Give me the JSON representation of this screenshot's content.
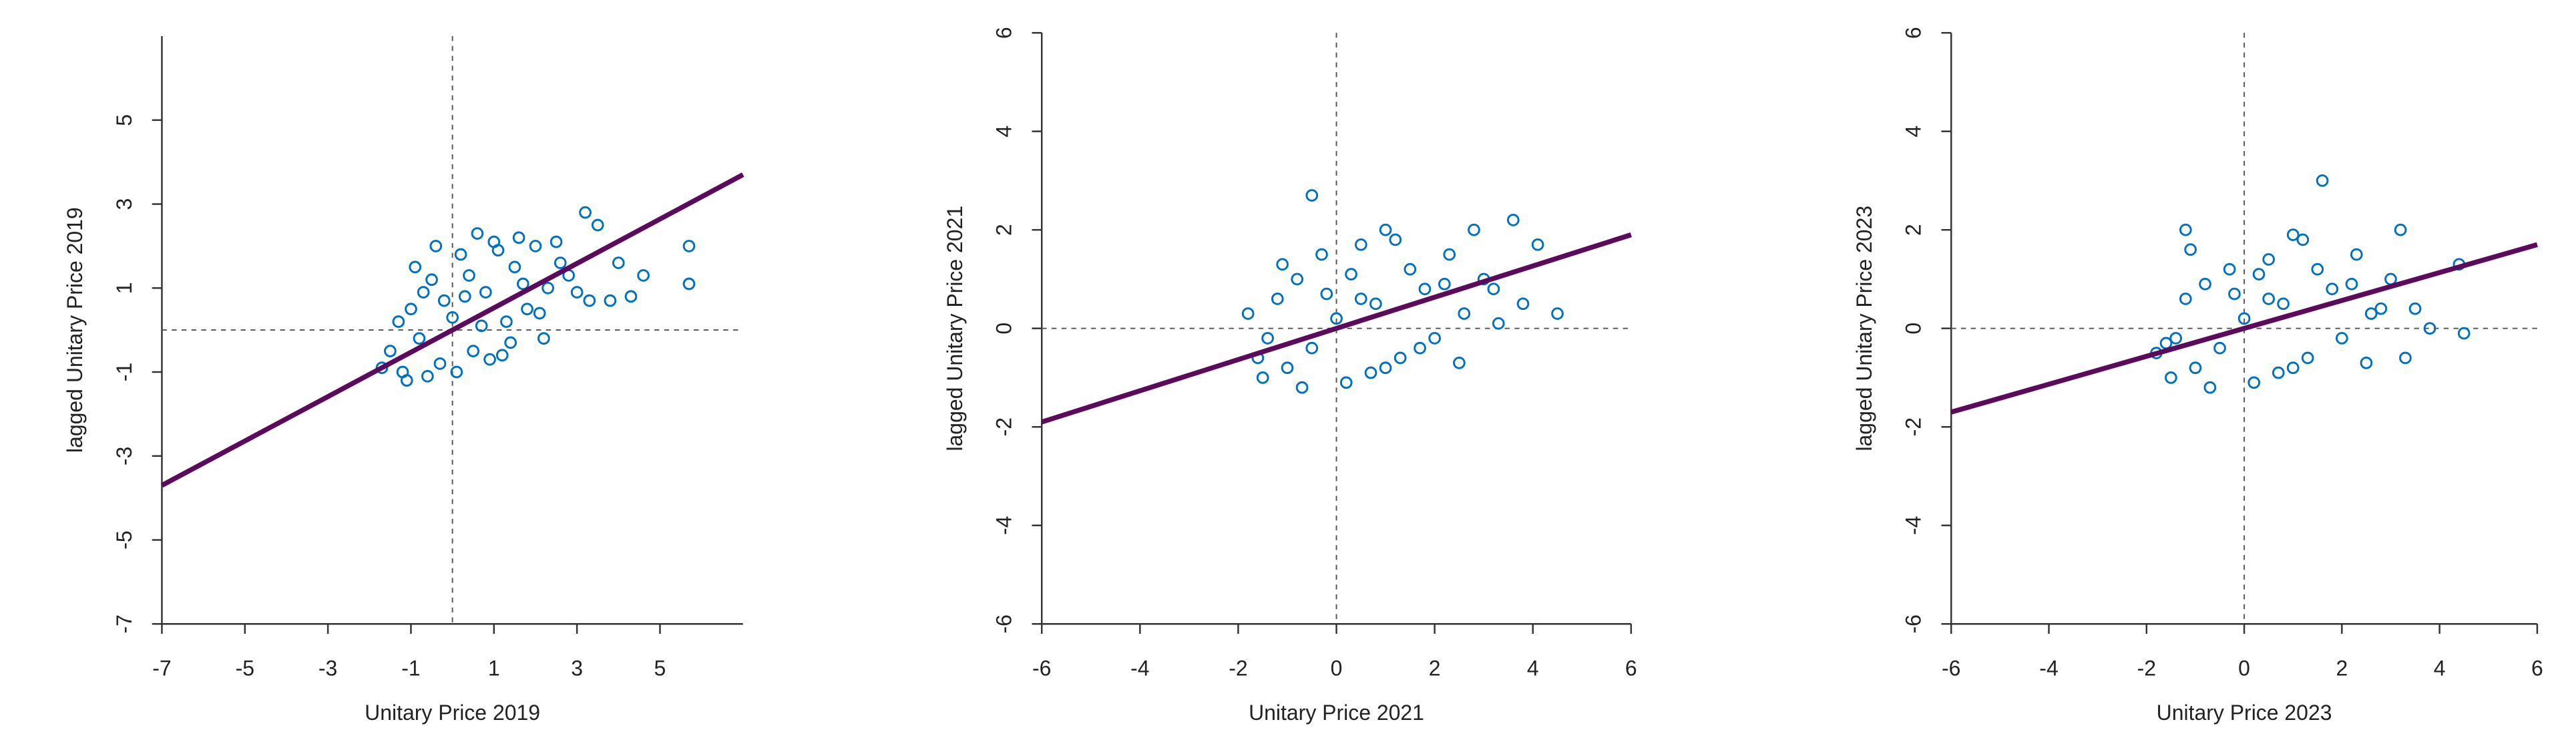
{
  "chart_data": [
    {
      "type": "scatter",
      "x_label": "Unitary Price 2019",
      "y_label": "lagged Unitary Price 2019",
      "xlim": [
        -7,
        7
      ],
      "ylim": [
        -7,
        7
      ],
      "xticks": [
        -7,
        -5,
        -3,
        -1,
        1,
        3,
        5
      ],
      "yticks": [
        -7,
        -5,
        -3,
        -1,
        1,
        3,
        5
      ],
      "ref_lines": {
        "x": 0,
        "y": 0
      },
      "series": [
        {
          "type": "scatter",
          "color": "#0070c0",
          "x": [
            -1.5,
            -1.2,
            -1.0,
            -0.8,
            -0.5,
            -0.3,
            0,
            0.2,
            0.5,
            0.8,
            1.0,
            1.3,
            1.5,
            1.8,
            2.0,
            2.3,
            2.6,
            3.0,
            -1.3,
            -0.9,
            -0.6,
            -0.2,
            0.1,
            0.4,
            0.7,
            1.1,
            1.4,
            1.7,
            2.1,
            2.5,
            2.8,
            -1.1,
            -0.4,
            0.3,
            0.9,
            1.6,
            2.2,
            3.2,
            3.3,
            3.5,
            3.8,
            4.0,
            4.3,
            4.6,
            5.7,
            5.7,
            -1.7,
            -0.7,
            0.6,
            1.2
          ],
          "values": [
            -0.5,
            -1.0,
            0.5,
            -0.2,
            1.2,
            -0.8,
            0.3,
            1.8,
            -0.5,
            0.9,
            2.1,
            0.2,
            1.5,
            0.5,
            2.0,
            1.0,
            1.6,
            0.9,
            0.2,
            1.5,
            -1.1,
            0.7,
            -1.0,
            1.3,
            0.1,
            1.9,
            -0.3,
            1.1,
            0.4,
            2.1,
            1.3,
            -1.2,
            2.0,
            0.8,
            -0.7,
            2.2,
            -0.2,
            2.8,
            0.7,
            2.5,
            0.7,
            1.6,
            0.8,
            1.3,
            2.0,
            1.1,
            -0.9,
            0.9,
            2.3,
            -0.6
          ]
        },
        {
          "type": "line",
          "color": "#5c0a5c",
          "x": [
            -7,
            7
          ],
          "values": [
            -3.7,
            3.7
          ]
        }
      ]
    },
    {
      "type": "scatter",
      "x_label": "Unitary Price 2021",
      "y_label": "lagged Unitary Price 2021",
      "xlim": [
        -6,
        6
      ],
      "ylim": [
        -6,
        6
      ],
      "xticks": [
        -6,
        -4,
        -2,
        0,
        2,
        4,
        6
      ],
      "yticks": [
        -6,
        -4,
        -2,
        0,
        2,
        4,
        6
      ],
      "ref_lines": {
        "x": 0,
        "y": 0
      },
      "series": [
        {
          "type": "scatter",
          "color": "#0070c0",
          "x": [
            -1.8,
            -1.5,
            -1.2,
            -1.0,
            -0.8,
            -0.5,
            -0.3,
            0,
            0.2,
            0.5,
            0.8,
            1.0,
            1.3,
            1.5,
            1.8,
            2.0,
            2.3,
            2.6,
            3.0,
            3.3,
            -1.6,
            -1.1,
            -0.7,
            -0.2,
            0.3,
            0.7,
            1.2,
            1.7,
            2.2,
            2.8,
            3.6,
            4.1,
            4.5,
            -0.5,
            1.0,
            3.8,
            -1.4,
            0.5,
            2.5,
            3.2
          ],
          "values": [
            0.3,
            -1.0,
            0.6,
            -0.8,
            1.0,
            -0.4,
            1.5,
            0.2,
            -1.1,
            1.7,
            0.5,
            2.0,
            -0.6,
            1.2,
            0.8,
            -0.2,
            1.5,
            0.3,
            1.0,
            0.1,
            -0.6,
            1.3,
            -1.2,
            0.7,
            1.1,
            -0.9,
            1.8,
            -0.4,
            0.9,
            2.0,
            2.2,
            1.7,
            0.3,
            2.7,
            -0.8,
            0.5,
            -0.2,
            0.6,
            -0.7,
            0.8
          ]
        },
        {
          "type": "line",
          "color": "#5c0a5c",
          "x": [
            -6,
            6
          ],
          "values": [
            -1.9,
            1.9
          ]
        }
      ]
    },
    {
      "type": "scatter",
      "x_label": "Unitary Price 2023",
      "y_label": "lagged Unitary Price 2023",
      "xlim": [
        -6,
        6
      ],
      "ylim": [
        -6,
        6
      ],
      "xticks": [
        -6,
        -4,
        -2,
        0,
        2,
        4,
        6
      ],
      "yticks": [
        -6,
        -4,
        -2,
        0,
        2,
        4,
        6
      ],
      "ref_lines": {
        "x": 0,
        "y": 0
      },
      "series": [
        {
          "type": "scatter",
          "color": "#0070c0",
          "x": [
            -1.8,
            -1.5,
            -1.2,
            -1.0,
            -0.8,
            -0.5,
            -0.3,
            0,
            0.2,
            0.5,
            0.8,
            1.0,
            1.3,
            1.5,
            1.8,
            2.0,
            2.3,
            2.6,
            3.0,
            3.3,
            -1.6,
            -1.1,
            -0.7,
            -0.2,
            0.3,
            0.7,
            1.2,
            1.6,
            2.2,
            2.8,
            3.2,
            4.4,
            4.5,
            -1.2,
            1.0,
            3.8,
            -1.4,
            0.5,
            2.5,
            3.5
          ],
          "values": [
            -0.5,
            -1.0,
            0.6,
            -0.8,
            0.9,
            -0.4,
            1.2,
            0.2,
            -1.1,
            1.4,
            0.5,
            1.9,
            -0.6,
            1.2,
            0.8,
            -0.2,
            1.5,
            0.3,
            1.0,
            -0.6,
            -0.3,
            1.6,
            -1.2,
            0.7,
            1.1,
            -0.9,
            1.8,
            3.0,
            0.9,
            0.4,
            2.0,
            1.3,
            -0.1,
            2.0,
            -0.8,
            0.0,
            -0.2,
            0.6,
            -0.7,
            0.4
          ]
        },
        {
          "type": "line",
          "color": "#5c0a5c",
          "x": [
            -6,
            6
          ],
          "values": [
            -1.7,
            1.7
          ]
        }
      ]
    }
  ]
}
